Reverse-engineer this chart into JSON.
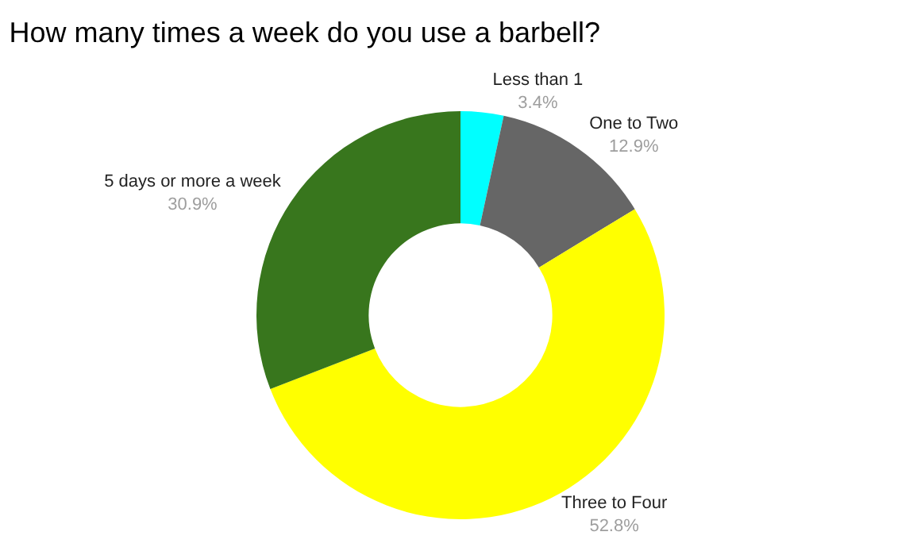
{
  "chart_data": {
    "type": "donut",
    "title": "How many times a week do you use a barbell?",
    "categories": [
      "Less than 1",
      "One to Two",
      "Three to Four",
      "5 days or more a week"
    ],
    "values": [
      3.4,
      12.9,
      52.8,
      30.9
    ],
    "value_labels": [
      "3.4%",
      "12.9%",
      "52.8%",
      "30.9%"
    ],
    "colors": [
      "#00ffff",
      "#666666",
      "#ffff00",
      "#38761d"
    ],
    "legend": false
  }
}
